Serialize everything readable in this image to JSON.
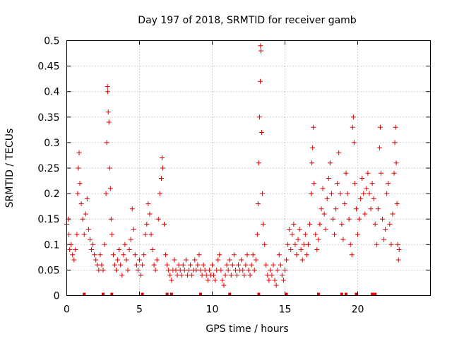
{
  "chart_data": {
    "type": "scatter",
    "title": "Day 197 of 2018, SRMTID for receiver gamb",
    "xlabel": "GPS time / hours",
    "ylabel": "SRMTID / TECUs",
    "xlim": [
      0,
      25
    ],
    "ylim": [
      0,
      0.5
    ],
    "xticks": [
      0,
      5,
      10,
      15,
      20
    ],
    "xtick_labels": [
      "0",
      "5",
      "10",
      "15",
      "20"
    ],
    "yticks": [
      0,
      0.05,
      0.1,
      0.15,
      0.2,
      0.25,
      0.3,
      0.35,
      0.4,
      0.45,
      0.5
    ],
    "ytick_labels": [
      "0",
      "0.05",
      "0.1",
      "0.15",
      "0.2",
      "0.25",
      "0.3",
      "0.35",
      "0.4",
      "0.45",
      "0.5"
    ],
    "grid": true,
    "marker": "+",
    "color": "#e00000",
    "series": [
      {
        "name": "SRMTID",
        "points": [
          [
            0.0,
            0.14
          ],
          [
            0.1,
            0.15
          ],
          [
            0.15,
            0.12
          ],
          [
            0.2,
            0.09
          ],
          [
            0.3,
            0.1
          ],
          [
            0.4,
            0.08
          ],
          [
            0.5,
            0.07
          ],
          [
            0.6,
            0.09
          ],
          [
            0.7,
            0.12
          ],
          [
            0.75,
            0.2
          ],
          [
            0.8,
            0.25
          ],
          [
            0.85,
            0.28
          ],
          [
            0.9,
            0.22
          ],
          [
            1.0,
            0.18
          ],
          [
            1.1,
            0.15
          ],
          [
            1.2,
            0.12
          ],
          [
            1.3,
            0.16
          ],
          [
            1.4,
            0.19
          ],
          [
            1.5,
            0.13
          ],
          [
            1.6,
            0.11
          ],
          [
            1.7,
            0.09
          ],
          [
            1.8,
            0.1
          ],
          [
            1.9,
            0.08
          ],
          [
            2.0,
            0.07
          ],
          [
            2.1,
            0.06
          ],
          [
            2.2,
            0.05
          ],
          [
            2.3,
            0.08
          ],
          [
            2.4,
            0.06
          ],
          [
            2.5,
            0.05
          ],
          [
            2.6,
            0.1
          ],
          [
            2.7,
            0.2
          ],
          [
            2.75,
            0.3
          ],
          [
            2.8,
            0.41
          ],
          [
            2.82,
            0.4
          ],
          [
            2.85,
            0.36
          ],
          [
            2.9,
            0.34
          ],
          [
            2.95,
            0.25
          ],
          [
            3.0,
            0.21
          ],
          [
            3.05,
            0.15
          ],
          [
            3.1,
            0.12
          ],
          [
            3.2,
            0.08
          ],
          [
            3.3,
            0.06
          ],
          [
            3.4,
            0.05
          ],
          [
            3.5,
            0.07
          ],
          [
            3.6,
            0.09
          ],
          [
            3.7,
            0.06
          ],
          [
            3.8,
            0.04
          ],
          [
            3.9,
            0.08
          ],
          [
            4.0,
            0.1
          ],
          [
            4.1,
            0.07
          ],
          [
            4.2,
            0.05
          ],
          [
            4.3,
            0.09
          ],
          [
            4.4,
            0.11
          ],
          [
            4.5,
            0.17
          ],
          [
            4.6,
            0.13
          ],
          [
            4.7,
            0.08
          ],
          [
            4.8,
            0.06
          ],
          [
            4.9,
            0.05
          ],
          [
            5.0,
            0.07
          ],
          [
            5.1,
            0.04
          ],
          [
            5.2,
            0.06
          ],
          [
            5.3,
            0.08
          ],
          [
            5.4,
            0.12
          ],
          [
            5.5,
            0.14
          ],
          [
            5.6,
            0.18
          ],
          [
            5.7,
            0.16
          ],
          [
            5.8,
            0.12
          ],
          [
            5.9,
            0.09
          ],
          [
            6.0,
            0.06
          ],
          [
            6.1,
            0.05
          ],
          [
            6.2,
            0.07
          ],
          [
            6.3,
            0.15
          ],
          [
            6.4,
            0.2
          ],
          [
            6.5,
            0.23
          ],
          [
            6.55,
            0.27
          ],
          [
            6.6,
            0.25
          ],
          [
            6.7,
            0.14
          ],
          [
            6.8,
            0.08
          ],
          [
            6.9,
            0.06
          ],
          [
            7.0,
            0.05
          ],
          [
            7.1,
            0.04
          ],
          [
            7.2,
            0.03
          ],
          [
            7.3,
            0.05
          ],
          [
            7.4,
            0.07
          ],
          [
            7.5,
            0.05
          ],
          [
            7.6,
            0.04
          ],
          [
            7.7,
            0.06
          ],
          [
            7.8,
            0.05
          ],
          [
            7.9,
            0.04
          ],
          [
            8.0,
            0.06
          ],
          [
            8.1,
            0.05
          ],
          [
            8.2,
            0.07
          ],
          [
            8.3,
            0.04
          ],
          [
            8.4,
            0.05
          ],
          [
            8.5,
            0.06
          ],
          [
            8.6,
            0.04
          ],
          [
            8.7,
            0.05
          ],
          [
            8.8,
            0.07
          ],
          [
            8.9,
            0.05
          ],
          [
            9.0,
            0.06
          ],
          [
            9.1,
            0.08
          ],
          [
            9.2,
            0.05
          ],
          [
            9.3,
            0.04
          ],
          [
            9.4,
            0.06
          ],
          [
            9.5,
            0.05
          ],
          [
            9.6,
            0.04
          ],
          [
            9.7,
            0.03
          ],
          [
            9.8,
            0.05
          ],
          [
            9.9,
            0.04
          ],
          [
            10.0,
            0.06
          ],
          [
            10.1,
            0.04
          ],
          [
            10.2,
            0.03
          ],
          [
            10.3,
            0.05
          ],
          [
            10.4,
            0.07
          ],
          [
            10.5,
            0.08
          ],
          [
            10.6,
            0.05
          ],
          [
            10.7,
            0.03
          ],
          [
            10.8,
            0.02
          ],
          [
            10.9,
            0.04
          ],
          [
            11.0,
            0.06
          ],
          [
            11.1,
            0.05
          ],
          [
            11.2,
            0.07
          ],
          [
            11.3,
            0.04
          ],
          [
            11.4,
            0.06
          ],
          [
            11.5,
            0.08
          ],
          [
            11.6,
            0.05
          ],
          [
            11.7,
            0.04
          ],
          [
            11.8,
            0.06
          ],
          [
            11.9,
            0.05
          ],
          [
            12.0,
            0.07
          ],
          [
            12.1,
            0.05
          ],
          [
            12.2,
            0.04
          ],
          [
            12.3,
            0.06
          ],
          [
            12.4,
            0.08
          ],
          [
            12.5,
            0.05
          ],
          [
            12.6,
            0.04
          ],
          [
            12.7,
            0.06
          ],
          [
            12.8,
            0.08
          ],
          [
            12.9,
            0.05
          ],
          [
            13.0,
            0.07
          ],
          [
            13.1,
            0.12
          ],
          [
            13.15,
            0.18
          ],
          [
            13.2,
            0.26
          ],
          [
            13.25,
            0.35
          ],
          [
            13.3,
            0.42
          ],
          [
            13.32,
            0.49
          ],
          [
            13.35,
            0.48
          ],
          [
            13.4,
            0.32
          ],
          [
            13.45,
            0.2
          ],
          [
            13.5,
            0.14
          ],
          [
            13.6,
            0.1
          ],
          [
            13.7,
            0.06
          ],
          [
            13.8,
            0.04
          ],
          [
            13.9,
            0.03
          ],
          [
            14.0,
            0.05
          ],
          [
            14.1,
            0.04
          ],
          [
            14.2,
            0.06
          ],
          [
            14.3,
            0.03
          ],
          [
            14.4,
            0.02
          ],
          [
            14.5,
            0.05
          ],
          [
            14.6,
            0.08
          ],
          [
            14.7,
            0.06
          ],
          [
            14.8,
            0.04
          ],
          [
            14.9,
            0.03
          ],
          [
            15.0,
            0.05
          ],
          [
            15.1,
            0.07
          ],
          [
            15.2,
            0.1
          ],
          [
            15.3,
            0.13
          ],
          [
            15.4,
            0.09
          ],
          [
            15.5,
            0.12
          ],
          [
            15.6,
            0.14
          ],
          [
            15.7,
            0.1
          ],
          [
            15.8,
            0.08
          ],
          [
            15.9,
            0.11
          ],
          [
            16.0,
            0.13
          ],
          [
            16.1,
            0.09
          ],
          [
            16.2,
            0.07
          ],
          [
            16.3,
            0.1
          ],
          [
            16.4,
            0.12
          ],
          [
            16.5,
            0.08
          ],
          [
            16.6,
            0.1
          ],
          [
            16.7,
            0.14
          ],
          [
            16.8,
            0.2
          ],
          [
            16.85,
            0.26
          ],
          [
            16.9,
            0.29
          ],
          [
            16.95,
            0.33
          ],
          [
            17.0,
            0.22
          ],
          [
            17.1,
            0.12
          ],
          [
            17.2,
            0.09
          ],
          [
            17.3,
            0.11
          ],
          [
            17.4,
            0.14
          ],
          [
            17.5,
            0.17
          ],
          [
            17.6,
            0.21
          ],
          [
            17.7,
            0.16
          ],
          [
            17.8,
            0.13
          ],
          [
            17.9,
            0.19
          ],
          [
            18.0,
            0.23
          ],
          [
            18.1,
            0.26
          ],
          [
            18.2,
            0.2
          ],
          [
            18.3,
            0.15
          ],
          [
            18.4,
            0.12
          ],
          [
            18.5,
            0.17
          ],
          [
            18.6,
            0.22
          ],
          [
            18.7,
            0.28
          ],
          [
            18.8,
            0.2
          ],
          [
            18.9,
            0.14
          ],
          [
            19.0,
            0.11
          ],
          [
            19.1,
            0.18
          ],
          [
            19.2,
            0.24
          ],
          [
            19.3,
            0.2
          ],
          [
            19.4,
            0.15
          ],
          [
            19.5,
            0.1
          ],
          [
            19.6,
            0.08
          ],
          [
            19.65,
            0.33
          ],
          [
            19.7,
            0.35
          ],
          [
            19.75,
            0.3
          ],
          [
            19.8,
            0.22
          ],
          [
            19.9,
            0.17
          ],
          [
            20.0,
            0.12
          ],
          [
            20.1,
            0.15
          ],
          [
            20.2,
            0.19
          ],
          [
            20.3,
            0.23
          ],
          [
            20.4,
            0.2
          ],
          [
            20.5,
            0.16
          ],
          [
            20.6,
            0.21
          ],
          [
            20.7,
            0.24
          ],
          [
            20.8,
            0.2
          ],
          [
            20.9,
            0.17
          ],
          [
            21.0,
            0.22
          ],
          [
            21.1,
            0.19
          ],
          [
            21.2,
            0.14
          ],
          [
            21.3,
            0.1
          ],
          [
            21.4,
            0.17
          ],
          [
            21.5,
            0.29
          ],
          [
            21.55,
            0.33
          ],
          [
            21.6,
            0.24
          ],
          [
            21.7,
            0.15
          ],
          [
            21.8,
            0.11
          ],
          [
            21.9,
            0.13
          ],
          [
            22.0,
            0.2
          ],
          [
            22.1,
            0.22
          ],
          [
            22.2,
            0.14
          ],
          [
            22.3,
            0.1
          ],
          [
            22.4,
            0.16
          ],
          [
            22.5,
            0.24
          ],
          [
            22.55,
            0.3
          ],
          [
            22.6,
            0.33
          ],
          [
            22.65,
            0.26
          ],
          [
            22.7,
            0.18
          ],
          [
            22.75,
            0.1
          ],
          [
            22.8,
            0.07
          ],
          [
            22.85,
            0.09
          ]
        ]
      }
    ],
    "baseline_markers": [
      1.2,
      2.5,
      3.1,
      5.2,
      6.9,
      7.2,
      9.2,
      11.2,
      13.2,
      15.1,
      17.3,
      18.9,
      19.2,
      19.9,
      21.0,
      21.2
    ]
  }
}
